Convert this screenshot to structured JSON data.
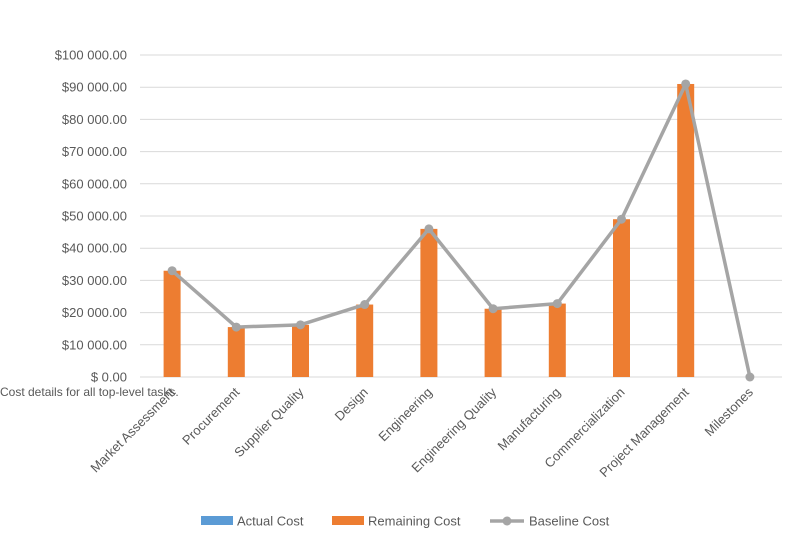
{
  "caption": "Cost details for all top-level tasks.",
  "chart_data": {
    "type": "bar",
    "categories": [
      "Market Assessment",
      "Procurement",
      "Supplier Quality",
      "Design",
      "Engineering",
      "Engineering Quality",
      "Manufacturing",
      "Commercialization",
      "Project Management",
      "Milestones"
    ],
    "series": [
      {
        "name": "Actual Cost",
        "type": "bar",
        "color": "#5B9BD5",
        "values": [
          0,
          0,
          0,
          0,
          0,
          0,
          0,
          0,
          0,
          0
        ]
      },
      {
        "name": "Remaining Cost",
        "type": "bar",
        "color": "#ED7D31",
        "values": [
          33000,
          15500,
          16200,
          22500,
          46000,
          21200,
          22800,
          49000,
          91000,
          0
        ]
      },
      {
        "name": "Baseline Cost",
        "type": "line",
        "color": "#A5A5A5",
        "values": [
          33000,
          15500,
          16200,
          22500,
          46000,
          21200,
          22800,
          49000,
          91000,
          0
        ]
      }
    ],
    "yticks": [
      "$ 0.00",
      "$10 000.00",
      "$20 000.00",
      "$30 000.00",
      "$40 000.00",
      "$50 000.00",
      "$60 000.00",
      "$70 000.00",
      "$80 000.00",
      "$90 000.00",
      "$100 000.00"
    ],
    "ylim": [
      0,
      100000
    ],
    "grid": true,
    "legend_position": "bottom"
  }
}
